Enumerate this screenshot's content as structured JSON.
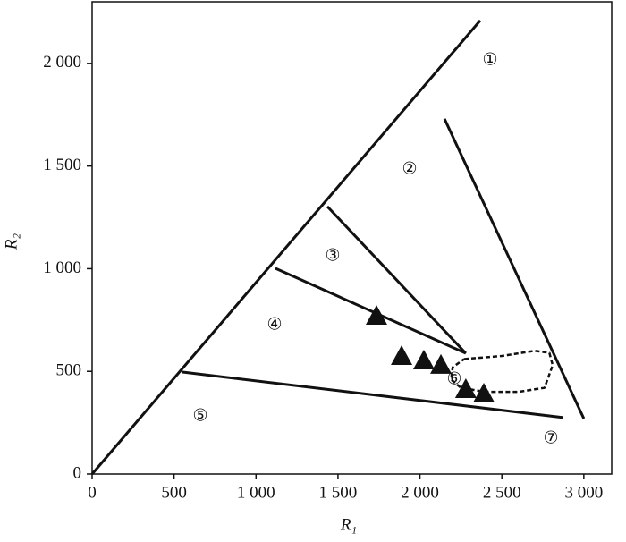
{
  "chart_data": {
    "type": "scatter",
    "x_label": "R₁",
    "y_label": "R₂",
    "xlim": [
      0,
      3170
    ],
    "ylim": [
      0,
      2300
    ],
    "xticks": [
      0,
      500,
      {
        "value": 1000,
        "label": "1 000"
      },
      {
        "value": 1500,
        "label": "1 500"
      },
      {
        "value": 2000,
        "label": "2 000"
      },
      {
        "value": 2500,
        "label": "2 500"
      },
      {
        "value": 3000,
        "label": "3 000"
      }
    ],
    "yticks": [
      0,
      500,
      {
        "value": 1000,
        "label": "1 000"
      },
      {
        "value": 1500,
        "label": "1 500"
      },
      {
        "value": 2000,
        "label": "2 000"
      }
    ],
    "grid": false,
    "color": "#111111",
    "x": [
      1735,
      1888,
      2024,
      2128,
      2280,
      2390
    ],
    "values": [
      771,
      575,
      553,
      532,
      414,
      392
    ],
    "lines": [
      {
        "x": [
          0,
          2368
        ],
        "y": [
          0,
          2209
        ]
      },
      {
        "x": [
          2150,
          3000
        ],
        "y": [
          1730,
          270
        ]
      },
      {
        "x": [
          1435,
          2280
        ],
        "y": [
          1303,
          588
        ]
      },
      {
        "x": [
          1118,
          2280
        ],
        "y": [
          1002,
          588
        ]
      },
      {
        "x": [
          546,
          2875
        ],
        "y": [
          497,
          275
        ]
      }
    ],
    "dashed": {
      "x": [
        2270,
        2500,
        2700,
        2790,
        2810,
        2760,
        2600,
        2400,
        2250,
        2190,
        2200,
        2270
      ],
      "y": [
        560,
        575,
        600,
        590,
        530,
        420,
        400,
        400,
        420,
        460,
        520,
        560
      ]
    },
    "annotations": [
      "①",
      "②",
      "③",
      "④",
      "⑤",
      "⑥",
      "⑦"
    ]
  }
}
